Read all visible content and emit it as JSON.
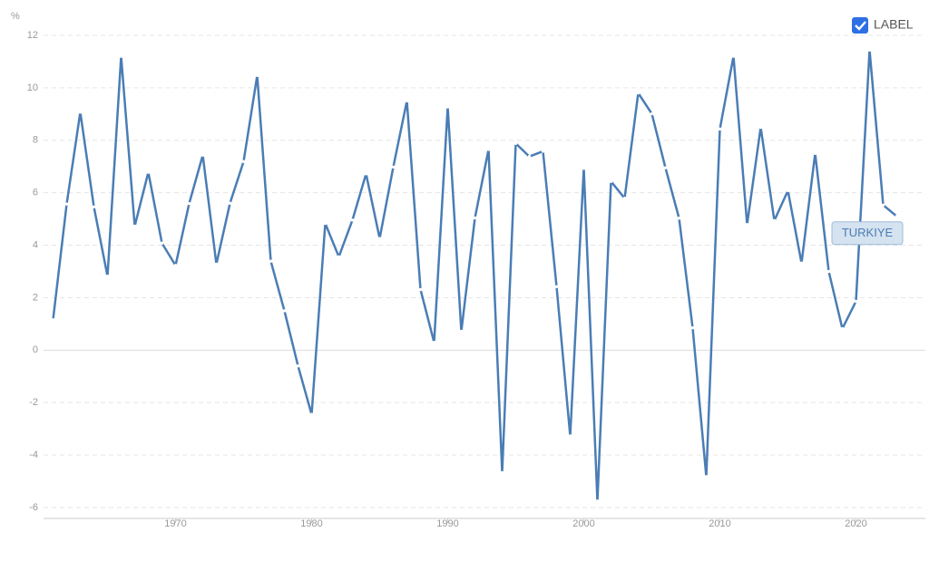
{
  "chart_data": {
    "type": "line",
    "y_label": "%",
    "legend_label": "LABEL",
    "x": [
      1961,
      1962,
      1963,
      1964,
      1965,
      1966,
      1967,
      1968,
      1969,
      1970,
      1971,
      1972,
      1973,
      1974,
      1975,
      1976,
      1977,
      1978,
      1979,
      1980,
      1981,
      1982,
      1983,
      1984,
      1985,
      1986,
      1987,
      1988,
      1989,
      1990,
      1991,
      1992,
      1993,
      1994,
      1995,
      1996,
      1997,
      1998,
      1999,
      2000,
      2001,
      2002,
      2003,
      2004,
      2005,
      2006,
      2007,
      2008,
      2009,
      2010,
      2011,
      2012,
      2013,
      2014,
      2015,
      2016,
      2017,
      2018,
      2019,
      2020,
      2021,
      2022,
      2023
    ],
    "series": [
      {
        "name": "TURKIYE",
        "color": "#4a7db5",
        "values": [
          1.16,
          5.57,
          9.07,
          5.46,
          2.82,
          11.2,
          4.73,
          6.78,
          4.08,
          3.23,
          5.59,
          7.43,
          3.28,
          5.6,
          7.19,
          10.47,
          3.39,
          1.5,
          -0.6,
          -2.45,
          4.83,
          3.56,
          4.96,
          6.72,
          4.26,
          6.98,
          9.5,
          2.31,
          0.3,
          9.27,
          0.72,
          5.04,
          7.65,
          -4.67,
          7.88,
          7.38,
          7.58,
          2.42,
          -3.27,
          6.93,
          -5.75,
          6.43,
          5.79,
          9.8,
          9.01,
          6.95,
          5.03,
          0.85,
          -4.82,
          8.43,
          11.2,
          4.79,
          8.49,
          4.94,
          6.08,
          3.32,
          7.5,
          3.0,
          0.82,
          1.86,
          11.44,
          5.53,
          5.1
        ]
      }
    ],
    "xlim": [
      1960.3,
      2025.1
    ],
    "xticks": [
      1970,
      1980,
      1990,
      2000,
      2010,
      2020
    ],
    "ylim": [
      -6,
      12
    ],
    "yticks": [
      -6,
      -4,
      -2,
      0,
      2,
      4,
      6,
      8,
      10,
      12
    ],
    "grid": true
  }
}
